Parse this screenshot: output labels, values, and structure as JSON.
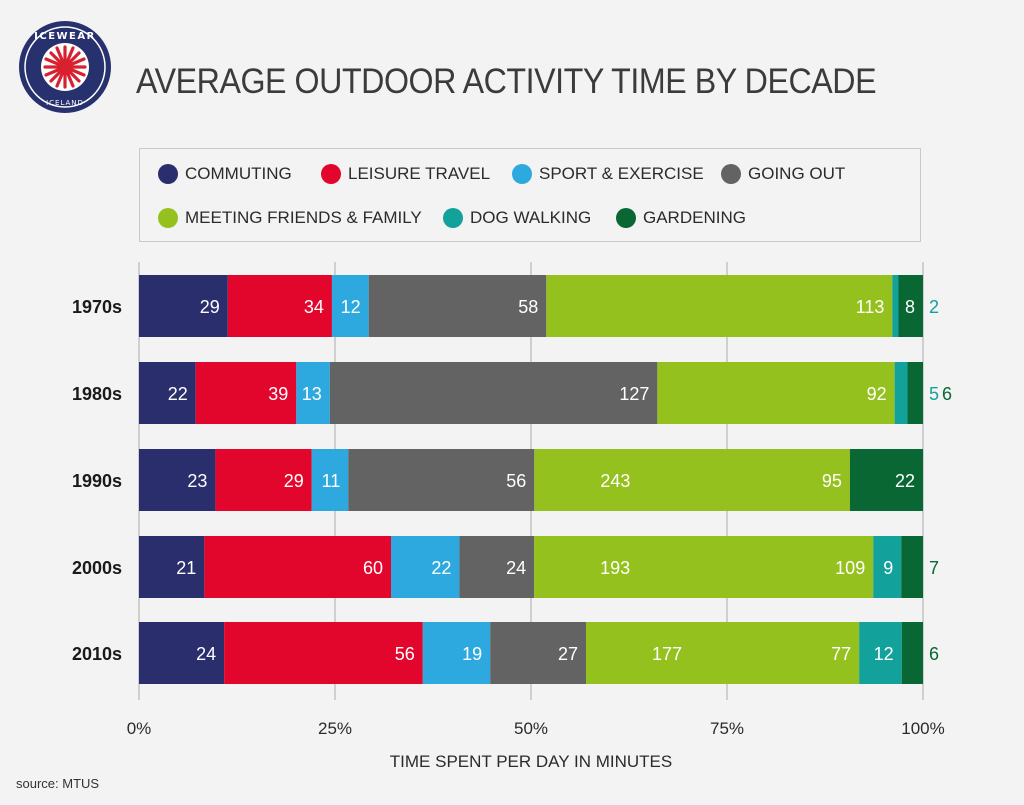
{
  "logo": {
    "brand": "ICEWEAR",
    "sub": "ICELAND"
  },
  "title": "AVERAGE OUTDOOR ACTIVITY TIME BY DECADE",
  "source": "source: MTUS",
  "chart_data": {
    "type": "bar",
    "orientation": "horizontal",
    "stacked": "percent",
    "title": "AVERAGE OUTDOOR ACTIVITY TIME BY DECADE",
    "xlabel": "TIME SPENT PER DAY IN MINUTES",
    "ylabel": "",
    "xlim": [
      0,
      100
    ],
    "xticks": [
      "0%",
      "25%",
      "50%",
      "75%",
      "100%"
    ],
    "grid": true,
    "legend_position": "top",
    "categories": [
      "1970s",
      "1980s",
      "1990s",
      "2000s",
      "2010s"
    ],
    "series": [
      {
        "name": "COMMUTING",
        "color": "#2a2e6c",
        "values": [
          29,
          22,
          23,
          21,
          24
        ]
      },
      {
        "name": "LEISURE TRAVEL",
        "color": "#e2062c",
        "values": [
          34,
          39,
          29,
          60,
          56
        ]
      },
      {
        "name": "SPORT & EXERCISE",
        "color": "#2ea9e0",
        "values": [
          12,
          13,
          11,
          22,
          19
        ]
      },
      {
        "name": "GOING OUT",
        "color": "#636363",
        "values": [
          58,
          127,
          56,
          24,
          27
        ]
      },
      {
        "name": "MEETING FRIENDS & FAMILY",
        "color": "#95c11f",
        "values": [
          113,
          92,
          95,
          109,
          77
        ]
      },
      {
        "name": "DOG WALKING",
        "color": "#12a19b",
        "values": [
          2,
          5,
          0,
          9,
          12
        ]
      },
      {
        "name": "GARDENING",
        "color": "#086733",
        "values": [
          8,
          6,
          22,
          7,
          6
        ]
      }
    ],
    "annotations": [
      {
        "category": "1990s",
        "series": "MEETING FRIENDS & FAMILY",
        "text": "243"
      },
      {
        "category": "2000s",
        "series": "MEETING FRIENDS & FAMILY",
        "text": "193"
      },
      {
        "category": "2010s",
        "series": "MEETING FRIENDS & FAMILY",
        "text": "177"
      }
    ]
  }
}
